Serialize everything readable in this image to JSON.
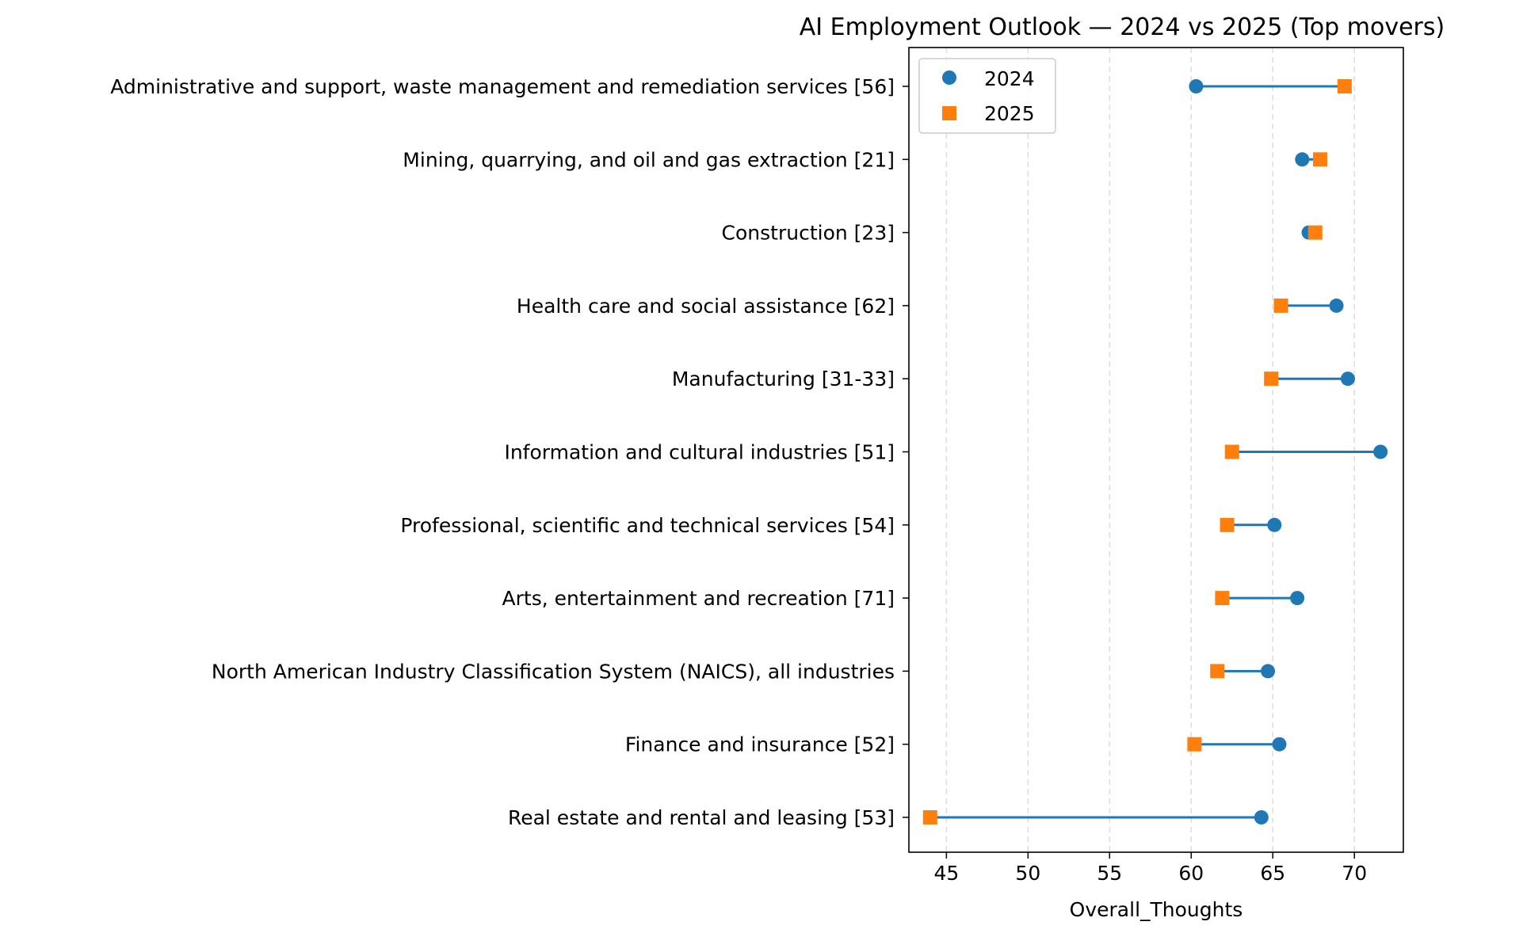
{
  "chart_data": {
    "type": "dumbbell",
    "title": "AI Employment Outlook — 2024 vs 2025 (Top movers)",
    "xlabel": "Overall_Thoughts",
    "ylabel": "",
    "xlim": [
      42.7,
      73.0
    ],
    "xticks": [
      45,
      50,
      55,
      60,
      65,
      70
    ],
    "grid": "vertical dashed",
    "legend_position": "top-left",
    "categories": [
      "Administrative and support, waste management and remediation services [56]",
      "Mining, quarrying, and oil and gas extraction [21]",
      "Construction [23]",
      "Health care and social assistance [62]",
      "Manufacturing [31-33]",
      "Information and cultural industries [51]",
      "Professional, scientific and technical services [54]",
      "Arts, entertainment and recreation [71]",
      "North American Industry Classification System (NAICS), all industries",
      "Finance and insurance [52]",
      "Real estate and rental and leasing [53]"
    ],
    "series": [
      {
        "name": "2024",
        "marker": "circle",
        "color": "#1f77b4",
        "values": [
          60.3,
          66.8,
          67.2,
          68.9,
          69.6,
          71.6,
          65.1,
          66.5,
          64.7,
          65.4,
          64.3
        ]
      },
      {
        "name": "2025",
        "marker": "square",
        "color": "#ff7f0e",
        "values": [
          69.4,
          67.9,
          67.6,
          65.5,
          64.9,
          62.5,
          62.2,
          61.9,
          61.6,
          60.2,
          44.0
        ]
      }
    ],
    "connector_color": "#1f77b4"
  }
}
